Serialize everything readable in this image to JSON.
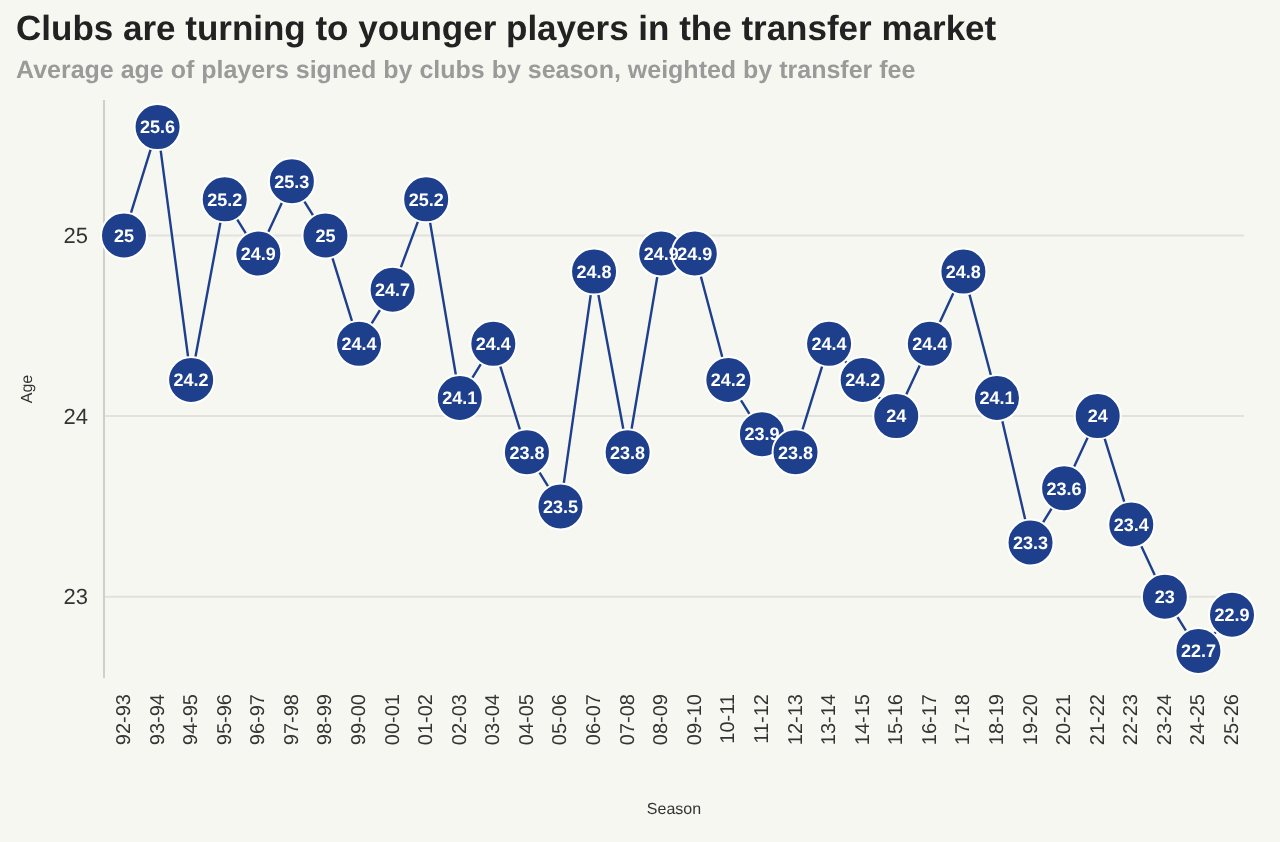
{
  "chart_data": {
    "type": "line",
    "title": "Clubs are turning to younger players in the transfer market",
    "subtitle": "Average age of players signed by clubs by season, weighted by transfer fee",
    "xlabel": "Season",
    "ylabel": "Age",
    "categories": [
      "92-93",
      "93-94",
      "94-95",
      "95-96",
      "96-97",
      "97-98",
      "98-99",
      "99-00",
      "00-01",
      "01-02",
      "02-03",
      "03-04",
      "04-05",
      "05-06",
      "06-07",
      "07-08",
      "08-09",
      "09-10",
      "10-11",
      "11-12",
      "12-13",
      "13-14",
      "14-15",
      "15-16",
      "16-17",
      "17-18",
      "18-19",
      "19-20",
      "20-21",
      "21-22",
      "22-23",
      "23-24",
      "24-25",
      "25-26"
    ],
    "series": [
      {
        "color": "#1e3f8c",
        "values": [
          25,
          25.6,
          24.2,
          25.2,
          24.9,
          25.3,
          25,
          24.4,
          24.7,
          25.2,
          24.1,
          24.4,
          23.8,
          23.5,
          24.8,
          23.8,
          24.9,
          24.9,
          24.2,
          23.9,
          23.8,
          24.4,
          24.2,
          24,
          24.4,
          24.8,
          24.1,
          23.3,
          23.6,
          24,
          23.4,
          23,
          22.7,
          22.9
        ]
      }
    ],
    "ylim": [
      22.55,
      25.75
    ],
    "yticks": [
      23,
      24,
      25
    ],
    "grid": "y",
    "marker": "circle",
    "data_labels": true
  }
}
